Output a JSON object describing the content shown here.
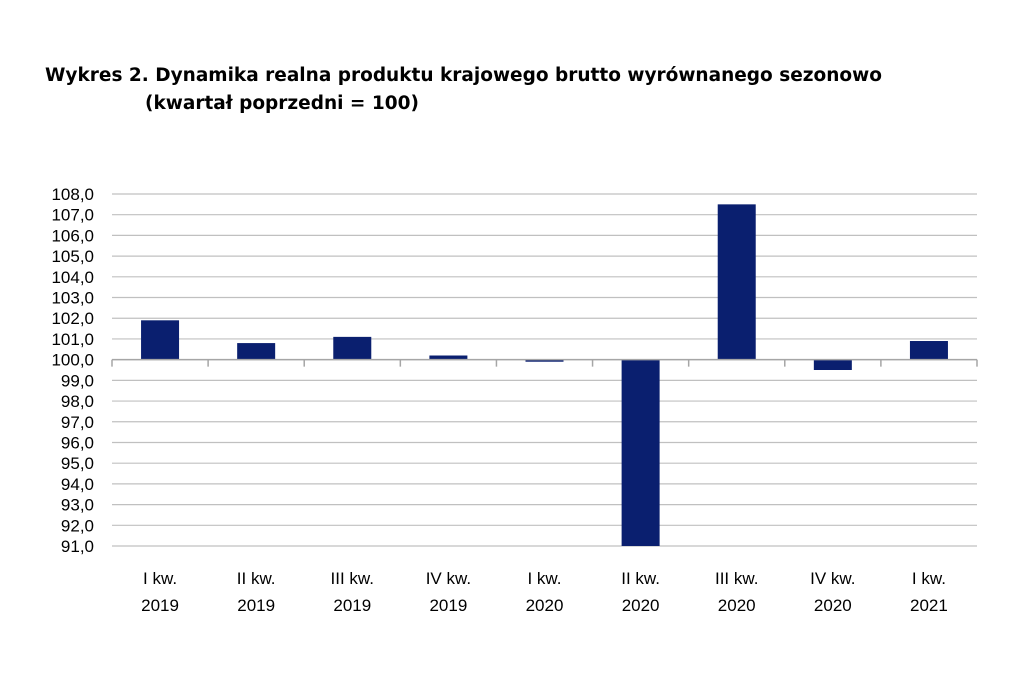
{
  "chart_data": {
    "type": "bar",
    "title": "Wykres 2. Dynamika realna produktu krajowego brutto wyrównanego sezonowo",
    "subtitle": "(kwartał poprzedni = 100)",
    "xlabel": "",
    "ylabel": "",
    "baseline": 100.0,
    "ylim": [
      91.0,
      108.0
    ],
    "yticks": [
      "108,0",
      "107,0",
      "106,0",
      "105,0",
      "104,0",
      "103,0",
      "102,0",
      "101,0",
      "100,0",
      "99,0",
      "98,0",
      "97,0",
      "96,0",
      "95,0",
      "94,0",
      "93,0",
      "92,0",
      "91,0"
    ],
    "categories": [
      [
        "I kw.",
        "2019"
      ],
      [
        "II kw.",
        "2019"
      ],
      [
        "III kw.",
        "2019"
      ],
      [
        "IV kw.",
        "2019"
      ],
      [
        "I kw.",
        "2020"
      ],
      [
        "II kw.",
        "2020"
      ],
      [
        "III kw.",
        "2020"
      ],
      [
        "IV kw.",
        "2020"
      ],
      [
        "I kw.",
        "2021"
      ]
    ],
    "values": [
      101.9,
      100.8,
      101.1,
      100.2,
      99.9,
      91.0,
      107.5,
      99.5,
      100.9
    ],
    "grid": true,
    "legend": "none",
    "bar_color": "#0a1f6f",
    "grid_color": "#c0c0c0"
  }
}
